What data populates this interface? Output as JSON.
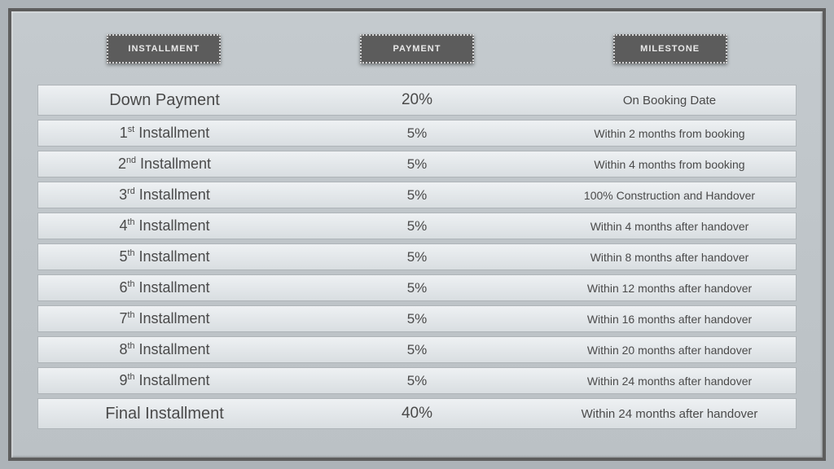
{
  "headers": {
    "installment": "INSTALLMENT",
    "payment": "PAYMENT",
    "milestone": "MILESTONE"
  },
  "rows": [
    {
      "installment_html": "Down Payment",
      "payment": "20%",
      "milestone": "On Booking Date",
      "large": true
    },
    {
      "installment_html": "1<sup>st</sup> Installment",
      "payment": "5%",
      "milestone": "Within 2 months from booking",
      "large": false
    },
    {
      "installment_html": "2<sup>nd</sup> Installment",
      "payment": "5%",
      "milestone": "Within 4 months from booking",
      "large": false
    },
    {
      "installment_html": "3<sup>rd</sup> Installment",
      "payment": "5%",
      "milestone": "100% Construction and Handover",
      "large": false
    },
    {
      "installment_html": "4<sup>th</sup> Installment",
      "payment": "5%",
      "milestone": "Within 4 months after handover",
      "large": false
    },
    {
      "installment_html": "5<sup>th</sup> Installment",
      "payment": "5%",
      "milestone": "Within 8 months after handover",
      "large": false
    },
    {
      "installment_html": "6<sup>th</sup> Installment",
      "payment": "5%",
      "milestone": "Within 12 months after handover",
      "large": false
    },
    {
      "installment_html": "7<sup>th</sup> Installment",
      "payment": "5%",
      "milestone": "Within 16 months after handover",
      "large": false
    },
    {
      "installment_html": "8<sup>th</sup> Installment",
      "payment": "5%",
      "milestone": "Within 20 months after handover",
      "large": false
    },
    {
      "installment_html": "9<sup>th</sup> Installment",
      "payment": "5%",
      "milestone": "Within 24 months after handover",
      "large": false
    },
    {
      "installment_html": "Final Installment",
      "payment": "40%",
      "milestone": "Within 24 months after handover",
      "large": true
    }
  ],
  "style": {
    "panel_bg_top": "#c4cace",
    "panel_bg_bottom": "#bbc1c5",
    "panel_border": "#5d5d5d",
    "header_bg": "#5c5c5c",
    "header_text": "#e9e9e9",
    "header_border": "#d0d0d0",
    "row_bg_top": "#eef1f3",
    "row_bg_bottom": "#d9dee1",
    "row_border": "#aeb4b8",
    "text_color": "#4a4a4a"
  }
}
